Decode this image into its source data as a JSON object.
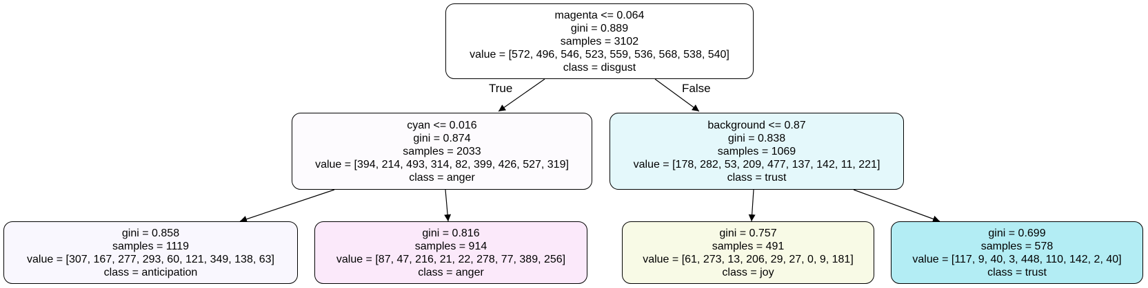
{
  "tree": {
    "nodes": [
      {
        "id": "root",
        "lines": [
          "magenta <= 0.064",
          "gini = 0.889",
          "samples = 3102",
          "value = [572, 496, 546, 523, 559, 536, 568, 538, 540]",
          "class = disgust"
        ],
        "fill": "#ffffff"
      },
      {
        "id": "left",
        "lines": [
          "cyan <= 0.016",
          "gini = 0.874",
          "samples = 2033",
          "value = [394, 214, 493, 314, 82, 399, 426, 527, 319]",
          "class = anger"
        ],
        "fill": "#fdfbfe"
      },
      {
        "id": "right",
        "lines": [
          "background <= 0.87",
          "gini = 0.838",
          "samples = 1069",
          "value = [178, 282, 53, 209, 477, 137, 142, 11, 221]",
          "class = trust"
        ],
        "fill": "#e4f8fb"
      },
      {
        "id": "ll",
        "lines": [
          "gini = 0.858",
          "samples = 1119",
          "value = [307, 167, 277, 293, 60, 121, 349, 138, 63]",
          "class = anticipation"
        ],
        "fill": "#f9f7fe"
      },
      {
        "id": "lr",
        "lines": [
          "gini = 0.816",
          "samples = 914",
          "value = [87, 47, 216, 21, 22, 278, 77, 389, 256]",
          "class = anger"
        ],
        "fill": "#fbe9fa"
      },
      {
        "id": "rl",
        "lines": [
          "gini = 0.757",
          "samples = 491",
          "value = [61, 273, 13, 206, 29, 27, 0, 9, 181]",
          "class = joy"
        ],
        "fill": "#f8fae6"
      },
      {
        "id": "rr",
        "lines": [
          "gini = 0.699",
          "samples = 578",
          "value = [117, 9, 40, 3, 448, 110, 142, 2, 40]",
          "class = trust"
        ],
        "fill": "#b3edf4"
      }
    ],
    "edge_labels": {
      "true_label": "True",
      "false_label": "False"
    }
  }
}
